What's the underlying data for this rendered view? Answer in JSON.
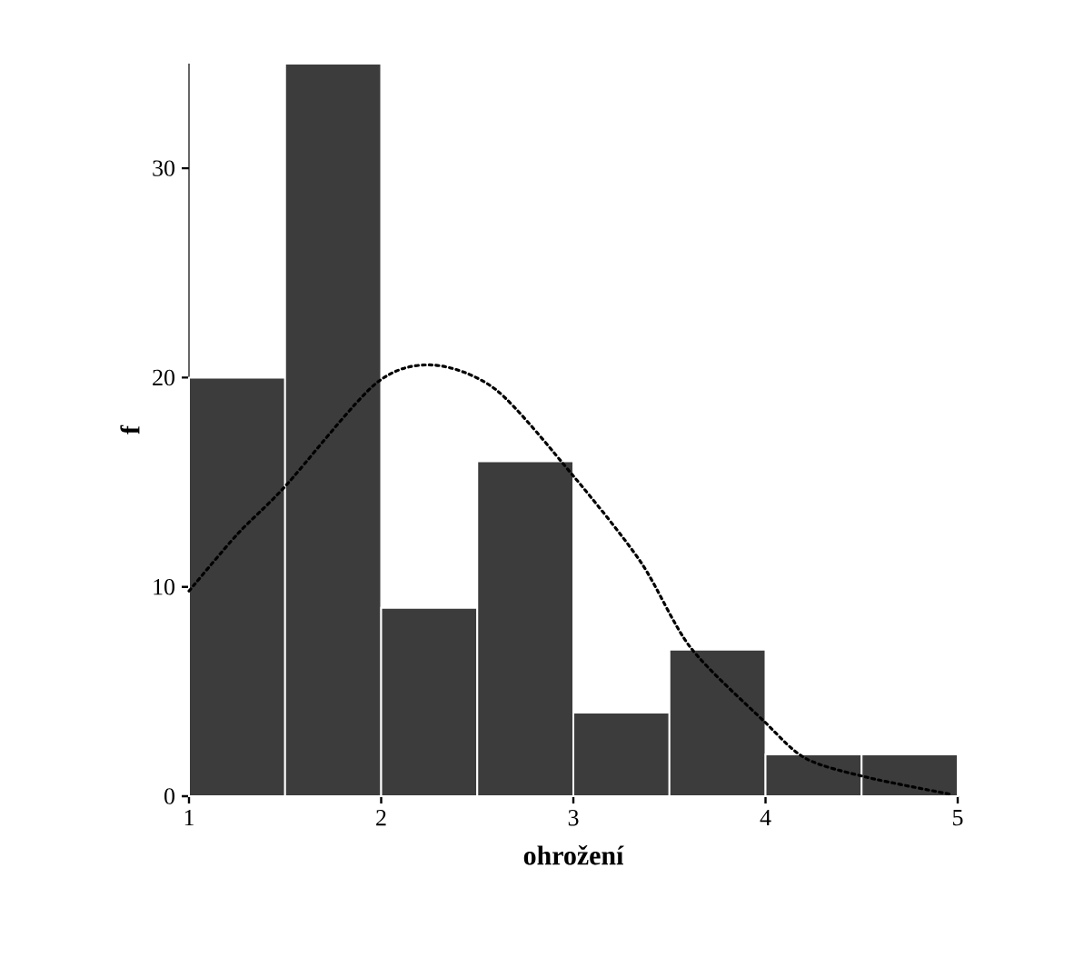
{
  "chart_data": {
    "type": "histogram",
    "xlabel": "ohrožení",
    "ylabel": "f",
    "bins": [
      1,
      1.5,
      2,
      2.5,
      3,
      3.5,
      4,
      4.5,
      5
    ],
    "values": [
      20,
      35,
      9,
      16,
      4,
      7,
      2,
      2
    ],
    "color": "#3c3c3c",
    "series": [
      {
        "type": "line",
        "color": "#000000",
        "line_style": "dotted",
        "x": [
          1,
          1.25,
          1.5,
          1.97,
          2.27,
          2.6,
          3.0,
          3.35,
          3.61,
          3.99,
          4.21,
          4.53,
          4.96
        ],
        "values": [
          9.8,
          12.5,
          14.8,
          19.7,
          20.6,
          19.4,
          15.3,
          11.2,
          7.1,
          3.6,
          1.8,
          0.9,
          0.1
        ]
      }
    ],
    "xlim": [
      1,
      5
    ],
    "ylim": [
      0,
      35
    ],
    "xticks": [
      1,
      2,
      3,
      4,
      5
    ],
    "yticks": [
      0,
      10,
      20,
      30
    ],
    "grid": false
  }
}
